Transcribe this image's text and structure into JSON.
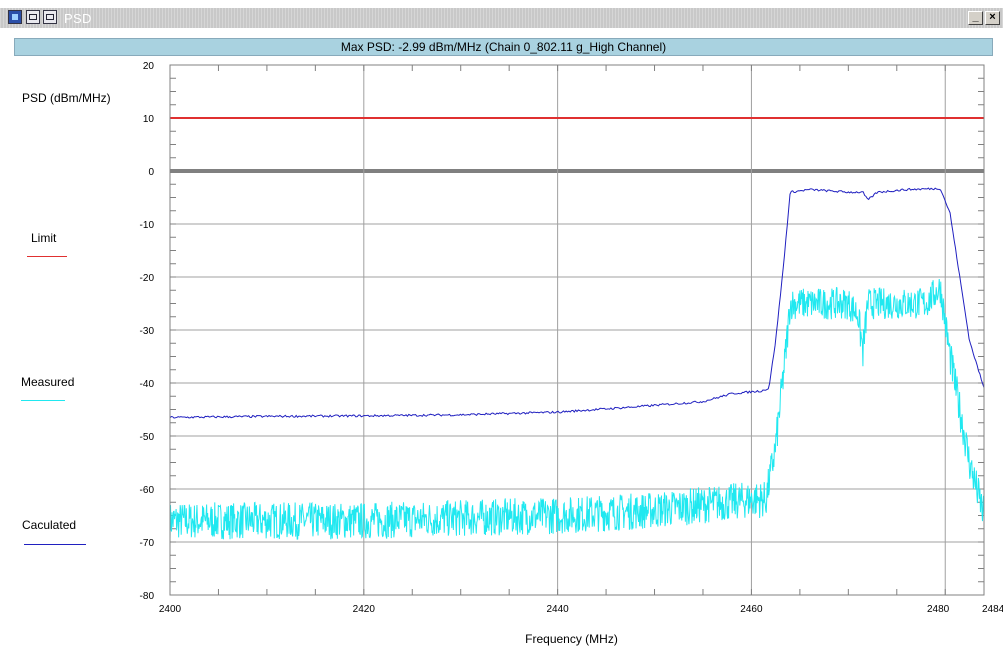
{
  "window": {
    "title": "PSD",
    "subtitle": "Max PSD: -2.99 dBm/MHz (Chain 0_802.11 g_High Channel)",
    "minimize_label": "_",
    "close_label": "×"
  },
  "legend": {
    "items": [
      {
        "label": "Limit",
        "color": "#e03030"
      },
      {
        "label": "Measured",
        "color": "#20e8f0"
      },
      {
        "label": "Caculated",
        "color": "#2020c0"
      }
    ]
  },
  "chart_data": {
    "type": "line",
    "ylabel": "PSD (dBm/MHz)",
    "xlabel": "Frequency (MHz)",
    "xlim": [
      2400,
      2484
    ],
    "ylim": [
      -80,
      20
    ],
    "x_ticks": [
      2400,
      2420,
      2440,
      2460,
      2480,
      2484
    ],
    "x_tick_labels": [
      "2400",
      "2420",
      "2440",
      "2460",
      "2480",
      "2484"
    ],
    "y_ticks": [
      20,
      10,
      0,
      -10,
      -20,
      -30,
      -40,
      -50,
      -60,
      -70,
      -80
    ],
    "y_tick_labels": [
      "20",
      "10",
      "0",
      "-10",
      "-20",
      "-30",
      "-40",
      "-50",
      "-60",
      "-70",
      "-80"
    ],
    "grid": true,
    "series": [
      {
        "name": "Limit",
        "color": "#e03030",
        "x": [
          2400,
          2484
        ],
        "y": [
          10,
          10
        ]
      },
      {
        "name": "Measured",
        "color": "#20e8f0",
        "x": [
          2400,
          2410,
          2420,
          2430,
          2440,
          2450,
          2455,
          2460,
          2461.5,
          2462.5,
          2463.5,
          2464,
          2466,
          2470,
          2471,
          2471.5,
          2472,
          2474,
          2478,
          2479.5,
          2480.5,
          2481.5,
          2482.5,
          2484
        ],
        "y": [
          -66,
          -66,
          -66,
          -65.5,
          -65,
          -64,
          -63,
          -62,
          -62,
          -52,
          -35,
          -25,
          -25,
          -25,
          -27,
          -34,
          -25,
          -25,
          -25,
          -22,
          -35,
          -45,
          -55,
          -65
        ]
      },
      {
        "name": "Caculated",
        "color": "#2020c0",
        "x": [
          2400,
          2410,
          2420,
          2430,
          2440,
          2448,
          2455,
          2458,
          2461,
          2461.8,
          2462.5,
          2463.3,
          2464,
          2466,
          2470,
          2471.5,
          2472,
          2473,
          2476,
          2479.5,
          2480.5,
          2481.5,
          2482.5,
          2484
        ],
        "y": [
          -46.5,
          -46.3,
          -46.2,
          -46,
          -45.5,
          -44.5,
          -43.5,
          -42,
          -41.5,
          -41,
          -32,
          -18,
          -4,
          -3.5,
          -4,
          -4,
          -5.5,
          -4,
          -3.5,
          -3.3,
          -8,
          -20,
          -32,
          -41
        ]
      }
    ]
  }
}
